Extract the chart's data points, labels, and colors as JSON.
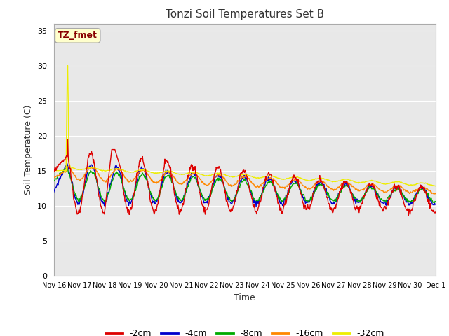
{
  "title": "Tonzi Soil Temperatures Set B",
  "xlabel": "Time",
  "ylabel": "Soil Temperature (C)",
  "ylim": [
    0,
    36
  ],
  "yticks": [
    0,
    5,
    10,
    15,
    20,
    25,
    30,
    35
  ],
  "annotation_text": "TZ_fmet",
  "annotation_box_facecolor": "#ffffcc",
  "annotation_text_color": "#880000",
  "annotation_edge_color": "#aaaaaa",
  "legend_entries": [
    "-2cm",
    "-4cm",
    "-8cm",
    "-16cm",
    "-32cm"
  ],
  "line_colors": [
    "#dd0000",
    "#0000cc",
    "#00aa00",
    "#ff8800",
    "#eeee00"
  ],
  "fig_facecolor": "#ffffff",
  "plot_bg_color": "#e8e8e8",
  "grid_color": "#ffffff",
  "n_days": 15,
  "start_day": 16,
  "xtick_labels": [
    "Nov 16",
    "Nov 17",
    "Nov 18",
    "Nov 19",
    "Nov 20",
    "Nov 21",
    "Nov 22",
    "Nov 23",
    "Nov 24",
    "Nov 25",
    "Nov 26",
    "Nov 27",
    "Nov 28",
    "Nov 29",
    "Nov 30",
    "Dec 1"
  ]
}
